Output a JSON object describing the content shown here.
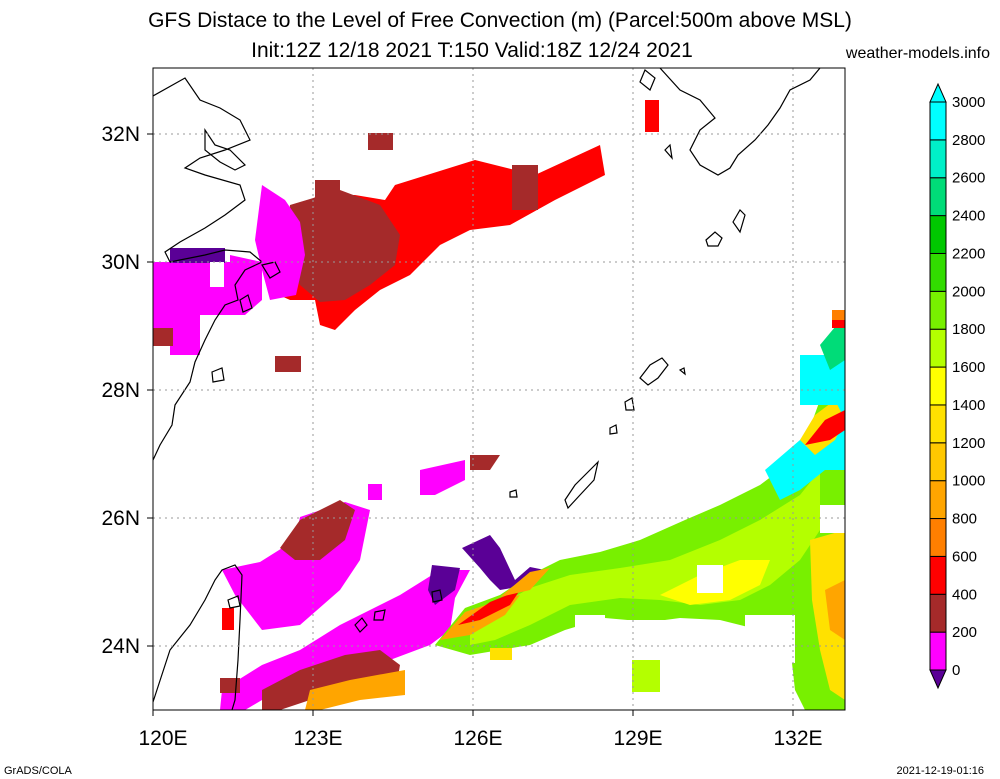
{
  "title": {
    "line1": "GFS Distace to the Level of Free Convection (m) (Parcel:500m above MSL)",
    "line2": "Init:12Z 12/18 2021 T:150 Valid:18Z 12/24 2021"
  },
  "site": "weather-models.info",
  "footer": {
    "left": "GrADS/COLA",
    "right": "2021-12-19-01:16"
  },
  "axes": {
    "lon_ticks": [
      "120E",
      "123E",
      "126E",
      "129E",
      "132E"
    ],
    "lat_ticks": [
      "32N",
      "30N",
      "28N",
      "26N",
      "24N"
    ]
  },
  "colorbar": {
    "labels": [
      "0",
      "200",
      "400",
      "600",
      "800",
      "1000",
      "1200",
      "1400",
      "1600",
      "1800",
      "2000",
      "2200",
      "2400",
      "2600",
      "2800",
      "3000"
    ],
    "colors": [
      "#5a0096",
      "#ff00ff",
      "#a52a2a",
      "#ff0000",
      "#ff7f00",
      "#ffa500",
      "#ffc800",
      "#ffe100",
      "#ffff00",
      "#b4ff00",
      "#78f000",
      "#32dc00",
      "#00c800",
      "#00dc78",
      "#00f0c8",
      "#00ffff"
    ]
  }
}
